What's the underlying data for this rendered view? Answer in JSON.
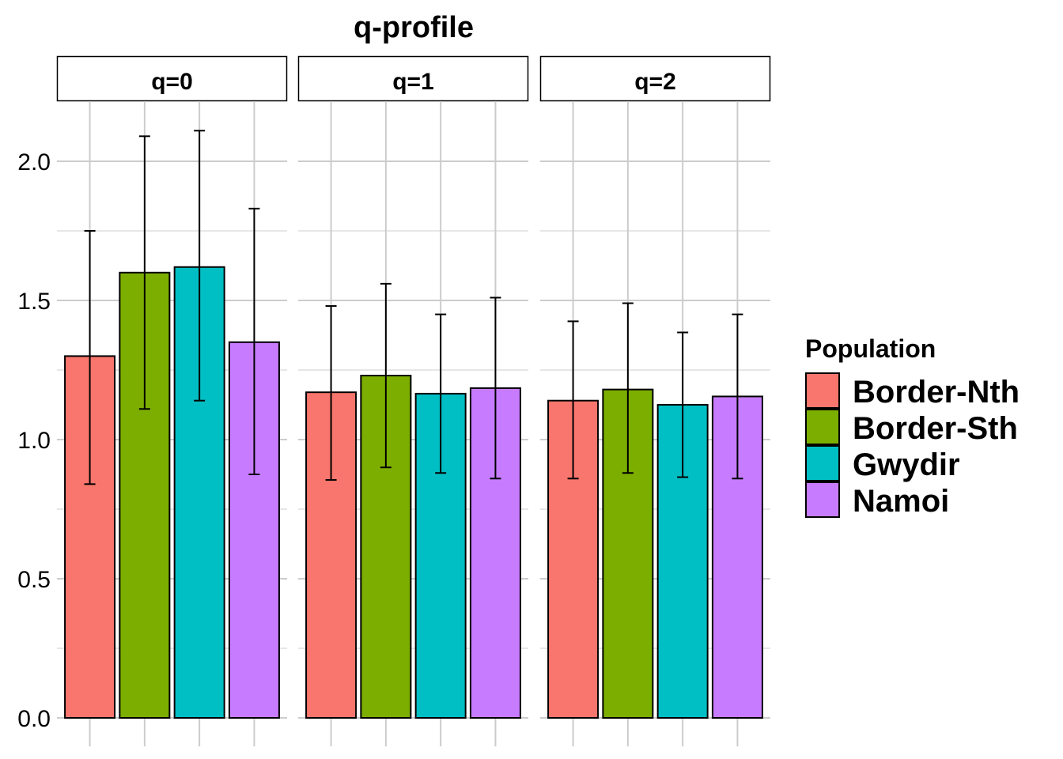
{
  "chart_data": {
    "type": "bar",
    "title": "q-profile",
    "xlabel": "",
    "ylabel": "",
    "ylim": [
      0,
      2.2
    ],
    "grid": true,
    "y_ticks": [
      "0.0",
      "0.5",
      "1.0",
      "1.5",
      "2.0"
    ],
    "y_tick_values": [
      0,
      0.5,
      1.0,
      1.5,
      2.0
    ],
    "facets": [
      "q=0",
      "q=1",
      "q=2"
    ],
    "categories": [
      "Border-Nth",
      "Border-Sth",
      "Gwydir",
      "Namoi"
    ],
    "legend": {
      "title": "Population",
      "position": "right",
      "entries": [
        "Border-Nth",
        "Border-Sth",
        "Gwydir",
        "Namoi"
      ]
    },
    "colors": {
      "Border-Nth": "#F8766D",
      "Border-Sth": "#7CAE00",
      "Gwydir": "#00BFC4",
      "Namoi": "#C77CFF"
    },
    "panels": [
      {
        "facet": "q=0",
        "values": [
          1.3,
          1.6,
          1.62,
          1.35
        ],
        "lower": [
          0.84,
          1.11,
          1.14,
          0.875
        ],
        "upper": [
          1.75,
          2.09,
          2.11,
          1.83
        ]
      },
      {
        "facet": "q=1",
        "values": [
          1.17,
          1.23,
          1.165,
          1.185
        ],
        "lower": [
          0.855,
          0.9,
          0.88,
          0.86
        ],
        "upper": [
          1.48,
          1.56,
          1.45,
          1.51
        ]
      },
      {
        "facet": "q=2",
        "values": [
          1.14,
          1.18,
          1.125,
          1.155
        ],
        "lower": [
          0.86,
          0.88,
          0.865,
          0.86
        ],
        "upper": [
          1.425,
          1.49,
          1.385,
          1.45
        ]
      }
    ]
  }
}
